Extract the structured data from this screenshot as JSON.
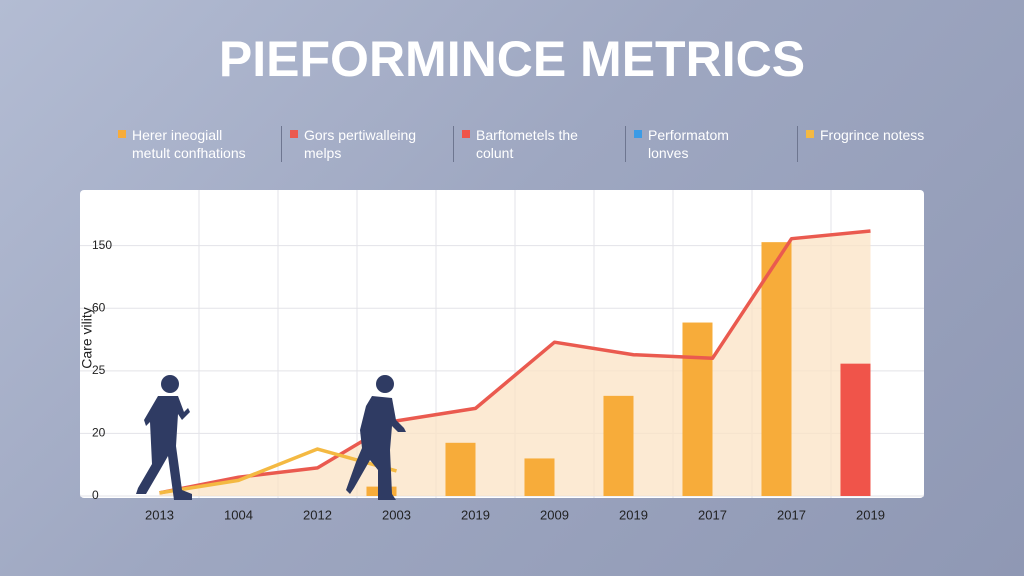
{
  "chart_data": {
    "type": "combo",
    "title": "PIEFORMINCE METRICS",
    "y_label": "Care vility",
    "categories": [
      "2013",
      "1004",
      "2012",
      "2003",
      "2019",
      "2009",
      "2019",
      "2017",
      "2017",
      "2019"
    ],
    "ylim": [
      0,
      230
    ],
    "yticks": [
      0,
      20,
      25,
      60,
      150
    ],
    "grid": true,
    "series": [
      {
        "name": "Herer ineogiall metult confhations",
        "type": "bar",
        "color": "#f7ac3a",
        "values": [
          null,
          null,
          null,
          3,
          17,
          12,
          23,
          52,
          155,
          null
        ]
      },
      {
        "name": "Gors pertiwalleing melps",
        "type": "line",
        "color": "#ea5a4f",
        "values": [
          1,
          6,
          9,
          21,
          22,
          41,
          34,
          32,
          160,
          171
        ]
      },
      {
        "name": "Barftometels the colunt",
        "type": "bar",
        "color": "#f0544a",
        "values": [
          null,
          null,
          null,
          null,
          null,
          null,
          null,
          null,
          null,
          29
        ]
      },
      {
        "name": "Performatom lonves",
        "type": "line",
        "color": "#3b9be6",
        "values": [
          null,
          null,
          null,
          null,
          null,
          null,
          null,
          null,
          null,
          null
        ]
      },
      {
        "name": "Frogrince notess",
        "type": "line",
        "color": "#f4b942",
        "values": [
          1,
          5,
          15,
          8,
          null,
          null,
          null,
          null,
          null,
          null
        ]
      }
    ]
  }
}
